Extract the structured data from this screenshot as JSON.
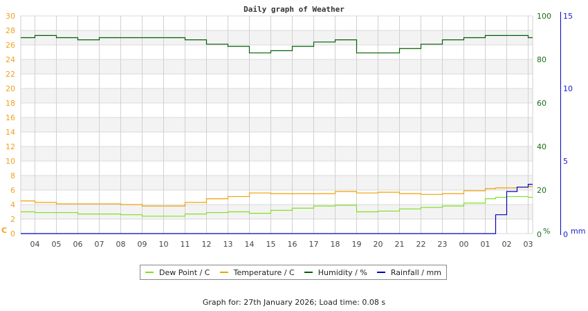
{
  "title": "Daily graph of Weather",
  "footer": "Graph for: 27th January 2026; Load time: 0.08 s",
  "legend": [
    {
      "label": "Dew Point / C",
      "color": "#80e020"
    },
    {
      "label": "Temperature / C",
      "color": "#f0a000"
    },
    {
      "label": "Humidity / %",
      "color": "#006000"
    },
    {
      "label": "Rainfall / mm",
      "color": "#0000c0"
    }
  ],
  "axes": {
    "left_unit": "C",
    "right_unit": "%",
    "far_right_unit": "mm",
    "left_ticks": [
      "0",
      "2",
      "4",
      "6",
      "8",
      "10",
      "12",
      "14",
      "16",
      "18",
      "20",
      "22",
      "24",
      "26",
      "28",
      "30"
    ],
    "right_ticks": [
      "0",
      "20",
      "40",
      "60",
      "80",
      "100"
    ],
    "far_right_ticks": [
      "0",
      "5",
      "10",
      "15"
    ],
    "x_ticks": [
      "04",
      "05",
      "06",
      "07",
      "08",
      "09",
      "10",
      "11",
      "12",
      "13",
      "14",
      "15",
      "16",
      "17",
      "18",
      "19",
      "20",
      "21",
      "22",
      "23",
      "00",
      "01",
      "02",
      "03"
    ]
  },
  "chart_data": {
    "type": "line",
    "title": "Daily graph of Weather",
    "xlabel": "",
    "x": [
      "03:20",
      "04",
      "05",
      "06",
      "07",
      "08",
      "09",
      "10",
      "11",
      "12",
      "13",
      "14",
      "15",
      "16",
      "17",
      "18",
      "19",
      "20",
      "21",
      "22",
      "23",
      "00",
      "01",
      "01:30",
      "02",
      "02:30",
      "03",
      "03:20"
    ],
    "axes": {
      "left": {
        "label": "C",
        "ylim": [
          0,
          30
        ]
      },
      "right": {
        "label": "%",
        "ylim": [
          0,
          100
        ]
      },
      "far_right": {
        "label": "mm",
        "ylim": [
          0,
          15
        ]
      }
    },
    "grid": true,
    "legend_position": "bottom",
    "series": [
      {
        "name": "Dew Point / C",
        "axis": "left",
        "color": "#80e020",
        "values": [
          3.0,
          2.9,
          2.9,
          2.7,
          2.7,
          2.6,
          2.4,
          2.4,
          2.7,
          2.9,
          3.0,
          2.8,
          3.2,
          3.5,
          3.8,
          3.9,
          3.0,
          3.1,
          3.4,
          3.6,
          3.8,
          4.2,
          4.8,
          5.0,
          5.1,
          5.1,
          5.0,
          5.0
        ]
      },
      {
        "name": "Temperature / C",
        "axis": "left",
        "color": "#f0a000",
        "values": [
          4.5,
          4.3,
          4.1,
          4.1,
          4.1,
          4.0,
          3.8,
          3.8,
          4.3,
          4.8,
          5.1,
          5.6,
          5.5,
          5.5,
          5.5,
          5.8,
          5.6,
          5.7,
          5.5,
          5.4,
          5.5,
          5.9,
          6.2,
          6.3,
          6.3,
          6.4,
          6.5,
          6.5
        ]
      },
      {
        "name": "Humidity / %",
        "axis": "right",
        "color": "#006000",
        "values": [
          90,
          91,
          90,
          89,
          90,
          90,
          90,
          90,
          89,
          87,
          86,
          83,
          84,
          86,
          88,
          89,
          83,
          83,
          85,
          87,
          89,
          90,
          91,
          91,
          91,
          91,
          90,
          90
        ]
      },
      {
        "name": "Rainfall / mm",
        "axis": "far_right",
        "color": "#0000c0",
        "values": [
          0,
          0,
          0,
          0,
          0,
          0,
          0,
          0,
          0,
          0,
          0,
          0,
          0,
          0,
          0,
          0,
          0,
          0,
          0,
          0,
          0,
          0,
          0,
          1.3,
          2.9,
          3.2,
          3.4,
          3.4
        ]
      }
    ]
  }
}
